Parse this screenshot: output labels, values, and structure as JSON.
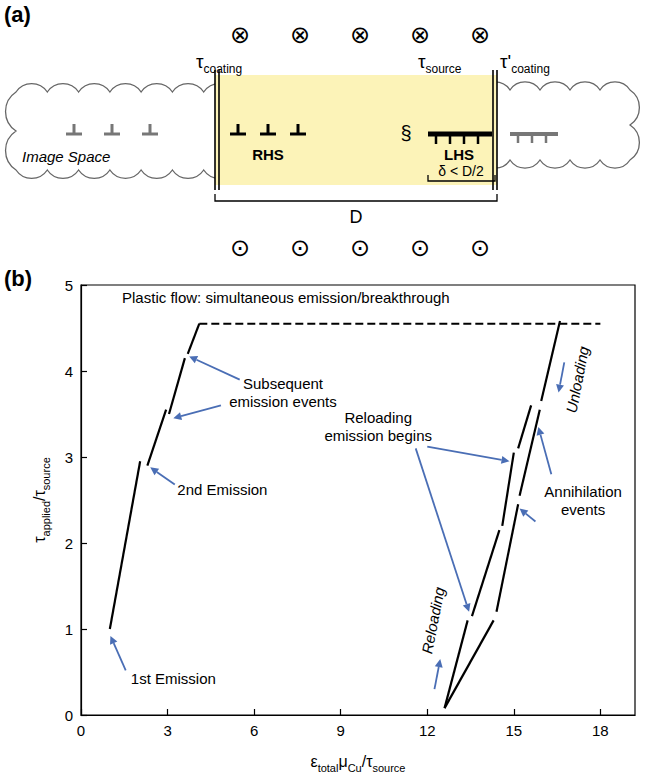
{
  "diagram": {
    "panel_label": "(a)",
    "field_top": {
      "symbol": "⊗",
      "count": 5
    },
    "field_bottom": {
      "symbol": "⊙",
      "count": 5
    },
    "stress_labels": [
      {
        "symbol": "τ",
        "sub": "coating"
      },
      {
        "symbol": "τ",
        "sub": "source"
      },
      {
        "symbol": "τ'",
        "sub": "coating"
      }
    ],
    "image_space_label": "Image Space",
    "dislocations": {
      "image_left": 3,
      "rhs": 3,
      "lhs": 4,
      "image_right": 3
    },
    "group_labels": {
      "rhs": "RHS",
      "lhs": "LHS"
    },
    "source_symbol": "§",
    "pileup_width_label": "δ < D/2",
    "film_width_label": "D"
  },
  "chart_data": {
    "type": "line",
    "panel_label": "(b)",
    "x_label": [
      {
        "text": "ε"
      },
      {
        "text": "total",
        "sub": true
      },
      {
        "text": "μ"
      },
      {
        "text": "Cu",
        "sub": true
      },
      {
        "text": "/τ"
      },
      {
        "text": "source",
        "sub": true
      }
    ],
    "y_label": [
      {
        "text": "τ"
      },
      {
        "text": "applied",
        "sub": true
      },
      {
        "text": "/τ"
      },
      {
        "text": "source",
        "sub": true
      }
    ],
    "xlim": [
      0,
      19.2
    ],
    "xticks": [
      0,
      3,
      6,
      9,
      12,
      15,
      18
    ],
    "ylim": [
      0,
      5
    ],
    "yticks": [
      0,
      1,
      2,
      3,
      4,
      5
    ],
    "grid": false,
    "series": [
      {
        "color": "#000000",
        "line_style": "solid",
        "segments": [
          [
            [
              1.0,
              1.0
            ],
            [
              2.05,
              2.95
            ]
          ],
          [
            [
              2.3,
              2.9
            ],
            [
              2.95,
              3.55
            ]
          ],
          [
            [
              3.05,
              3.5
            ],
            [
              3.6,
              4.15
            ]
          ],
          [
            [
              3.7,
              4.2
            ],
            [
              4.1,
              4.55
            ]
          ],
          [
            [
              16.6,
              4.58
            ],
            [
              15.95,
              3.65
            ]
          ],
          [
            [
              15.9,
              3.55
            ],
            [
              15.2,
              2.55
            ]
          ],
          [
            [
              15.15,
              2.45
            ],
            [
              14.4,
              1.2
            ]
          ],
          [
            [
              14.3,
              1.1
            ],
            [
              12.6,
              0.08
            ]
          ],
          [
            [
              12.6,
              0.08
            ],
            [
              13.4,
              1.1
            ]
          ],
          [
            [
              13.55,
              1.15
            ],
            [
              14.5,
              2.15
            ]
          ],
          [
            [
              14.6,
              2.2
            ],
            [
              15.0,
              3.05
            ]
          ],
          [
            [
              15.15,
              3.1
            ],
            [
              15.6,
              3.6
            ]
          ]
        ]
      },
      {
        "color": "#000000",
        "line_style": "dashed",
        "segments": [
          [
            [
              4.1,
              4.55
            ],
            [
              18,
              4.55
            ]
          ]
        ]
      }
    ],
    "annotations": [
      {
        "lines": [
          "Plastic flow: simultaneous emission/breakthrough"
        ],
        "at": [
          7.1,
          4.85
        ],
        "arrows": []
      },
      {
        "lines": [
          "Subsequent",
          "emission events"
        ],
        "at": [
          7.0,
          3.75
        ],
        "arrows": [
          [
            [
              5.5,
              3.9
            ],
            [
              3.75,
              4.17
            ]
          ],
          [
            [
              4.85,
              3.6
            ],
            [
              3.2,
              3.45
            ]
          ]
        ]
      },
      {
        "lines": [
          "2nd Emission"
        ],
        "at": [
          4.9,
          2.62
        ],
        "arrows": [
          [
            [
              3.25,
              2.68
            ],
            [
              2.4,
              2.88
            ]
          ]
        ]
      },
      {
        "lines": [
          "1st Emission"
        ],
        "at": [
          3.2,
          0.42
        ],
        "arrows": [
          [
            [
              1.55,
              0.52
            ],
            [
              1.02,
              0.92
            ]
          ]
        ]
      },
      {
        "lines": [
          "Reloading",
          "emission begins"
        ],
        "at": [
          10.3,
          3.35
        ],
        "arrows": [
          [
            [
              12.0,
              3.12
            ],
            [
              14.85,
              2.95
            ]
          ],
          [
            [
              11.6,
              3.1
            ],
            [
              13.45,
              1.2
            ]
          ]
        ]
      },
      {
        "lines": [
          "Annihilation",
          "events"
        ],
        "at": [
          17.4,
          2.5
        ],
        "arrows": [
          [
            [
              15.75,
              2.25
            ],
            [
              15.2,
              2.4
            ]
          ],
          [
            [
              16.3,
              2.8
            ],
            [
              15.85,
              3.35
            ]
          ]
        ]
      }
    ],
    "line_labels": [
      {
        "text": "Reloading",
        "at": [
          12.2,
          1.1
        ],
        "arrows": [
          [
            [
              12.25,
              0.3
            ],
            [
              12.45,
              0.65
            ]
          ]
        ]
      },
      {
        "text": "Unloading",
        "at": [
          17.2,
          3.9
        ],
        "arrows": [
          [
            [
              16.75,
              4.1
            ],
            [
              16.55,
              3.75
            ]
          ]
        ]
      }
    ]
  }
}
